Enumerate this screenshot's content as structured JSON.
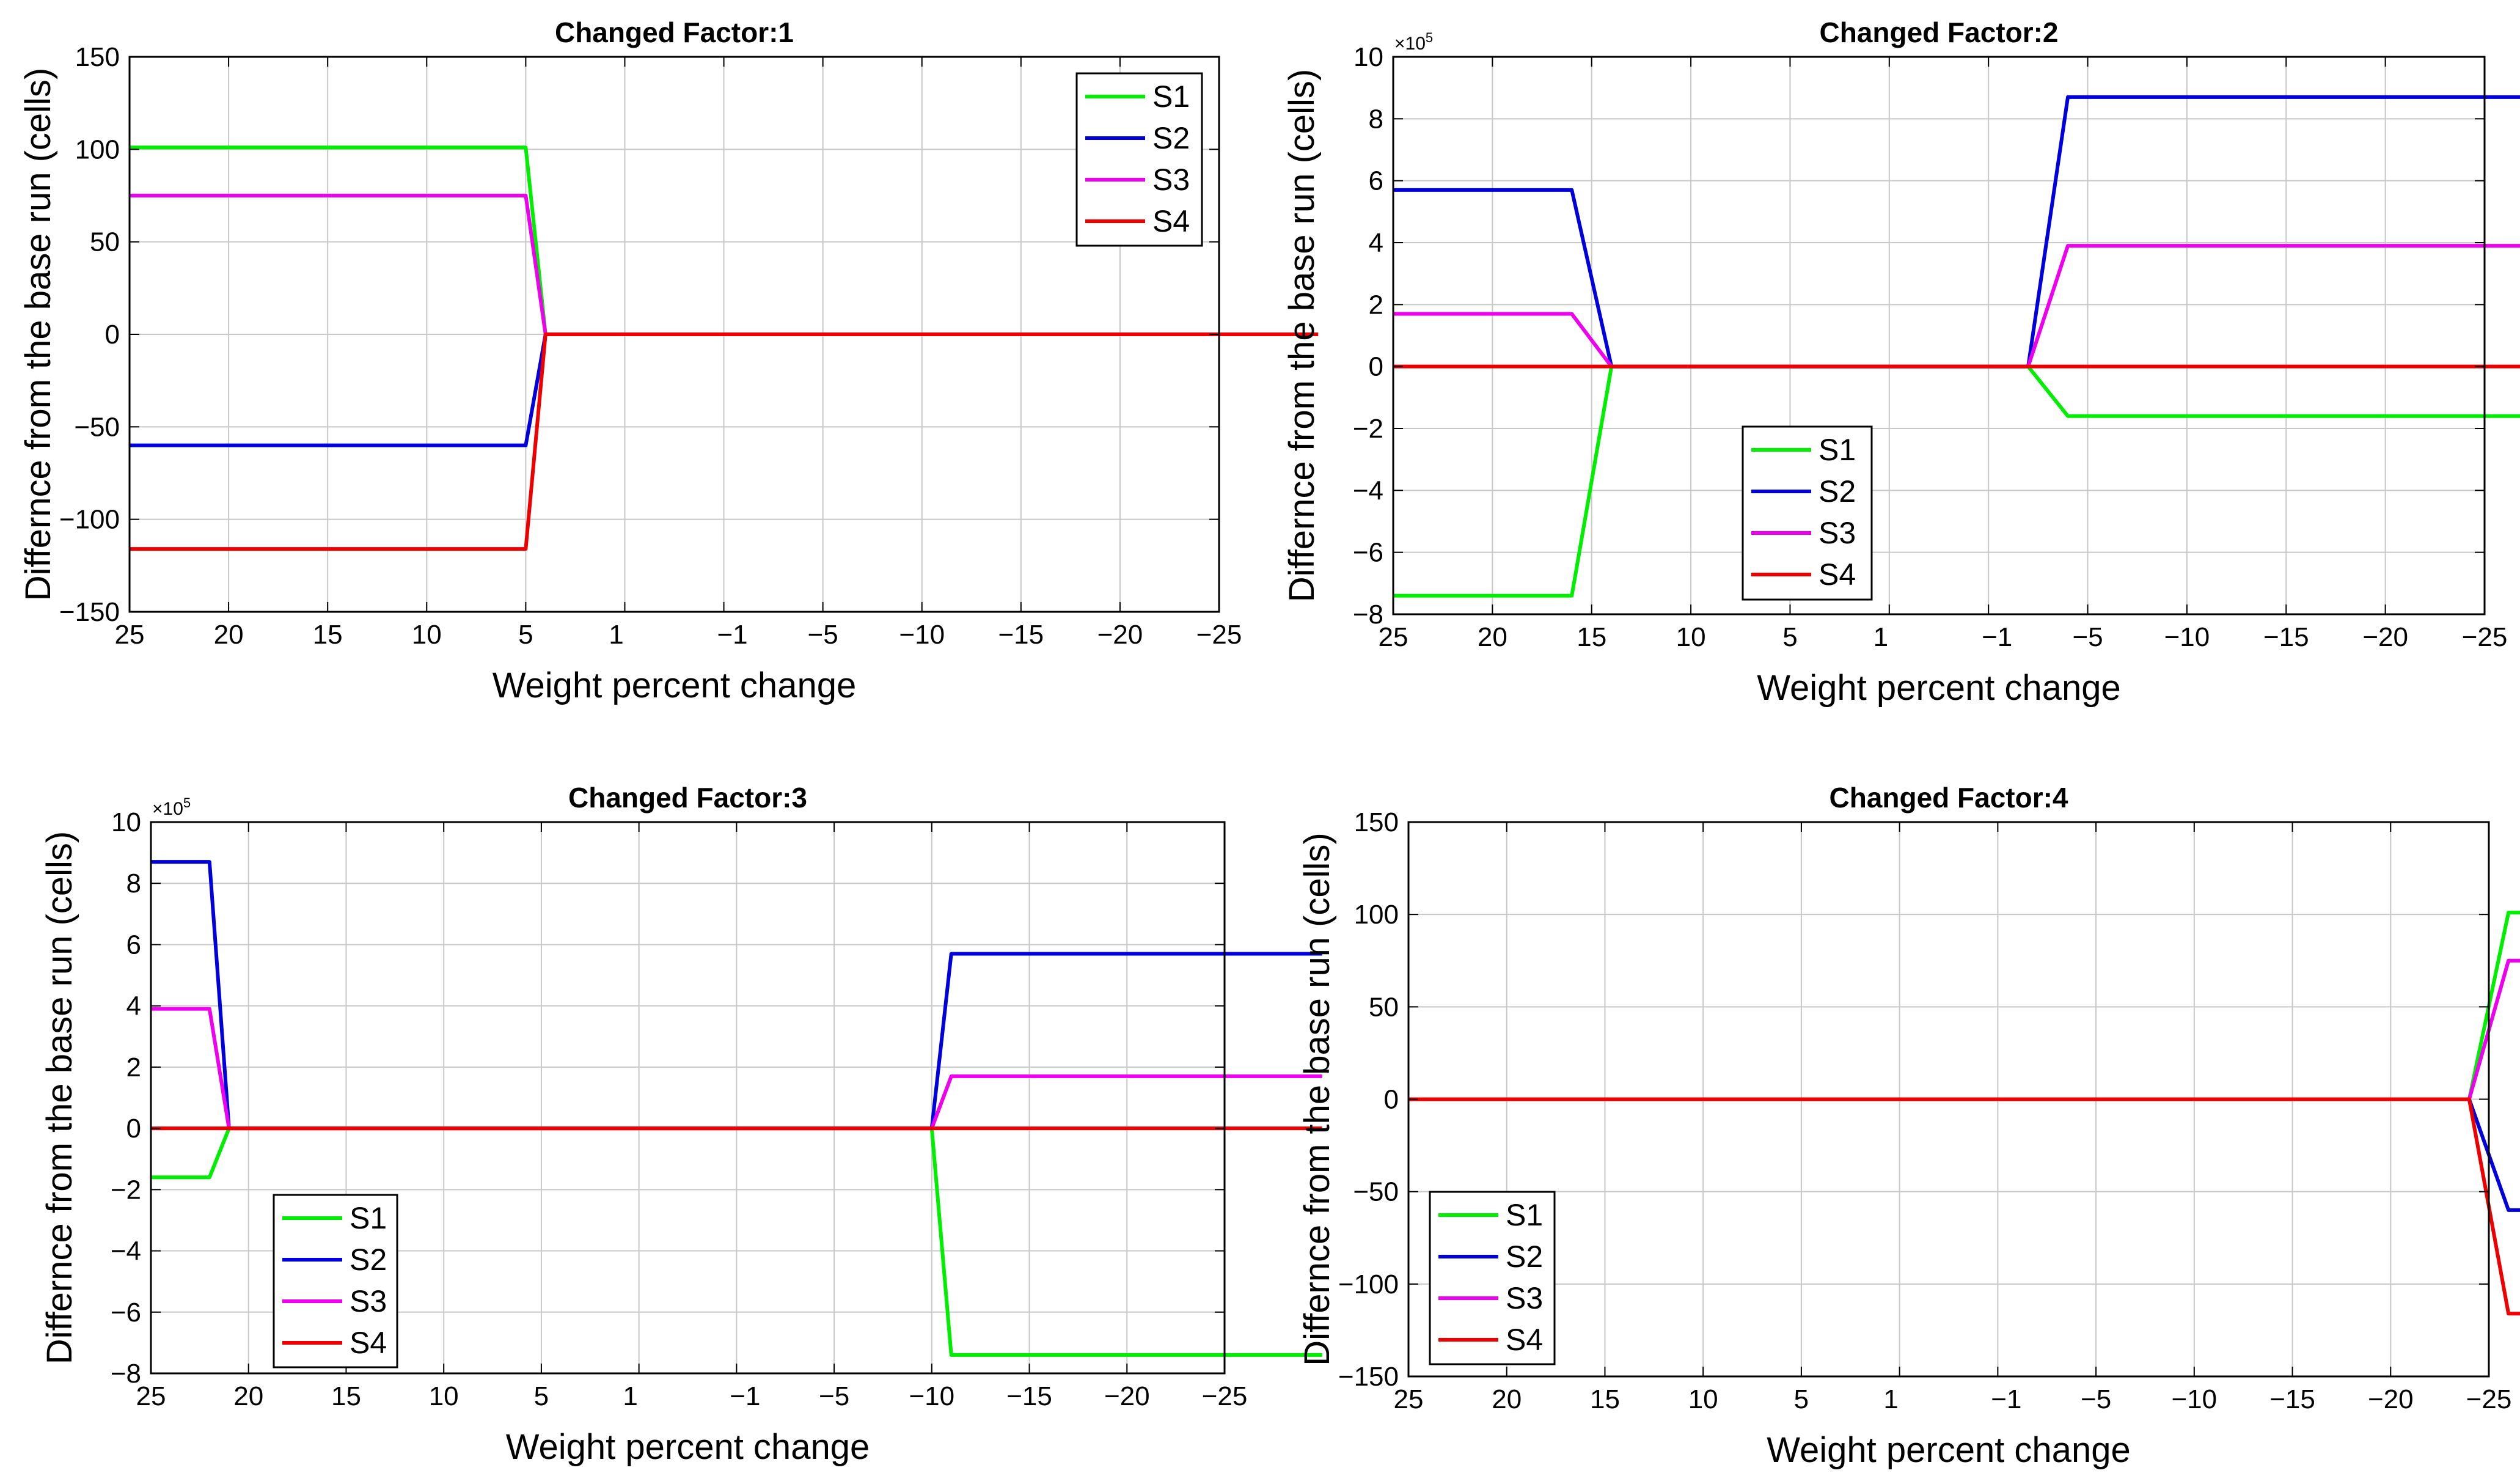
{
  "colors": {
    "S1": "#00ee00",
    "S2": "#0000dd",
    "S3": "#ee00ee",
    "S4": "#ee0000",
    "grid": "#c8c8c8",
    "axes": "#000000"
  },
  "chart_data": [
    {
      "type": "line",
      "title": "Changed Factor:1",
      "xlabel": "Weight percent change",
      "ylabel": "Differnce from the base run (cells)",
      "x_ticks": [
        "25",
        "20",
        "15",
        "10",
        "5",
        "1",
        "−1",
        "−5",
        "−10",
        "−15",
        "−20",
        "−25"
      ],
      "y_ticks": [
        "150",
        "100",
        "50",
        "0",
        "−50",
        "−100",
        "−150"
      ],
      "y_multiplier": "",
      "ylim": [
        -150,
        150
      ],
      "grid": true,
      "legend": "top-right",
      "x_note": "x is tick index 0..11 (25,20,15,10,5,1,-1,-5,-10,-15,-20,-25)",
      "series": [
        {
          "name": "S1",
          "x": [
            0,
            4,
            4.2,
            12
          ],
          "y": [
            101,
            101,
            0,
            0
          ]
        },
        {
          "name": "S2",
          "x": [
            0,
            4,
            4.2,
            12
          ],
          "y": [
            -60,
            -60,
            0,
            0
          ]
        },
        {
          "name": "S3",
          "x": [
            0,
            4,
            4.2,
            12
          ],
          "y": [
            75,
            75,
            0,
            0
          ]
        },
        {
          "name": "S4",
          "x": [
            0,
            4,
            4.2,
            12
          ],
          "y": [
            -116,
            -116,
            0,
            0
          ]
        }
      ]
    },
    {
      "type": "line",
      "title": "Changed Factor:2",
      "xlabel": "Weight percent change",
      "ylabel": "Differnce from the base run (cells)",
      "x_ticks": [
        "25",
        "20",
        "15",
        "10",
        "5",
        "1",
        "−1",
        "−5",
        "−10",
        "−15",
        "−20",
        "−25"
      ],
      "y_ticks": [
        "10",
        "8",
        "6",
        "4",
        "2",
        "0",
        "−2",
        "−4",
        "−6",
        "−8"
      ],
      "y_multiplier": "×10",
      "y_multiplier_exp": "5",
      "ylim": [
        -8,
        10
      ],
      "grid": true,
      "legend": "lower-left",
      "series": [
        {
          "name": "S1",
          "x": [
            0,
            1.8,
            2.2,
            6.4,
            6.8,
            12
          ],
          "y": [
            -7.4,
            -7.4,
            0,
            0,
            -1.6,
            -1.6
          ]
        },
        {
          "name": "S2",
          "x": [
            0,
            1.8,
            2.2,
            6.4,
            6.8,
            12
          ],
          "y": [
            5.7,
            5.7,
            0,
            0,
            8.7,
            8.7
          ]
        },
        {
          "name": "S3",
          "x": [
            0,
            1.8,
            2.2,
            6.4,
            6.8,
            12
          ],
          "y": [
            1.7,
            1.7,
            0,
            0,
            3.9,
            3.9
          ]
        },
        {
          "name": "S4",
          "x": [
            0,
            12
          ],
          "y": [
            0,
            0
          ]
        }
      ]
    },
    {
      "type": "line",
      "title": "Changed Factor:3",
      "xlabel": "Weight percent change",
      "ylabel": "Differnce from the base run (cells)",
      "x_ticks": [
        "25",
        "20",
        "15",
        "10",
        "5",
        "1",
        "−1",
        "−5",
        "−10",
        "−15",
        "−20",
        "−25"
      ],
      "y_ticks": [
        "10",
        "8",
        "6",
        "4",
        "2",
        "0",
        "−2",
        "−4",
        "−6",
        "−8"
      ],
      "y_multiplier": "×10",
      "y_multiplier_exp": "5",
      "ylim": [
        -8,
        10
      ],
      "grid": true,
      "legend": "lower-left",
      "series": [
        {
          "name": "S1",
          "x": [
            0,
            0.6,
            0.8,
            8,
            8.2,
            12
          ],
          "y": [
            -1.6,
            -1.6,
            0,
            0,
            -7.4,
            -7.4
          ]
        },
        {
          "name": "S2",
          "x": [
            0,
            0.6,
            0.8,
            8,
            8.2,
            12
          ],
          "y": [
            8.7,
            8.7,
            0,
            0,
            5.7,
            5.7
          ]
        },
        {
          "name": "S3",
          "x": [
            0,
            0.6,
            0.8,
            8,
            8.2,
            12
          ],
          "y": [
            3.9,
            3.9,
            0,
            0,
            1.7,
            1.7
          ]
        },
        {
          "name": "S4",
          "x": [
            0,
            12
          ],
          "y": [
            0,
            0
          ]
        }
      ]
    },
    {
      "type": "line",
      "title": "Changed Factor:4",
      "xlabel": "Weight percent change",
      "ylabel": "Differnce from the base run (cells)",
      "x_ticks": [
        "25",
        "20",
        "15",
        "10",
        "5",
        "1",
        "−1",
        "−5",
        "−10",
        "−15",
        "−20",
        "−25"
      ],
      "y_ticks": [
        "150",
        "100",
        "50",
        "0",
        "−50",
        "−100",
        "−150"
      ],
      "y_multiplier": "",
      "ylim": [
        -150,
        150
      ],
      "grid": true,
      "legend": "lower-left",
      "series": [
        {
          "name": "S1",
          "x": [
            0,
            10.8,
            11.2,
            12
          ],
          "y": [
            0,
            0,
            101,
            101
          ]
        },
        {
          "name": "S2",
          "x": [
            0,
            10.8,
            11.2,
            12
          ],
          "y": [
            0,
            0,
            -60,
            -60
          ]
        },
        {
          "name": "S3",
          "x": [
            0,
            10.8,
            11.2,
            12
          ],
          "y": [
            0,
            0,
            75,
            75
          ]
        },
        {
          "name": "S4",
          "x": [
            0,
            10.8,
            11.2,
            12
          ],
          "y": [
            0,
            0,
            -116,
            -116
          ]
        }
      ]
    }
  ]
}
